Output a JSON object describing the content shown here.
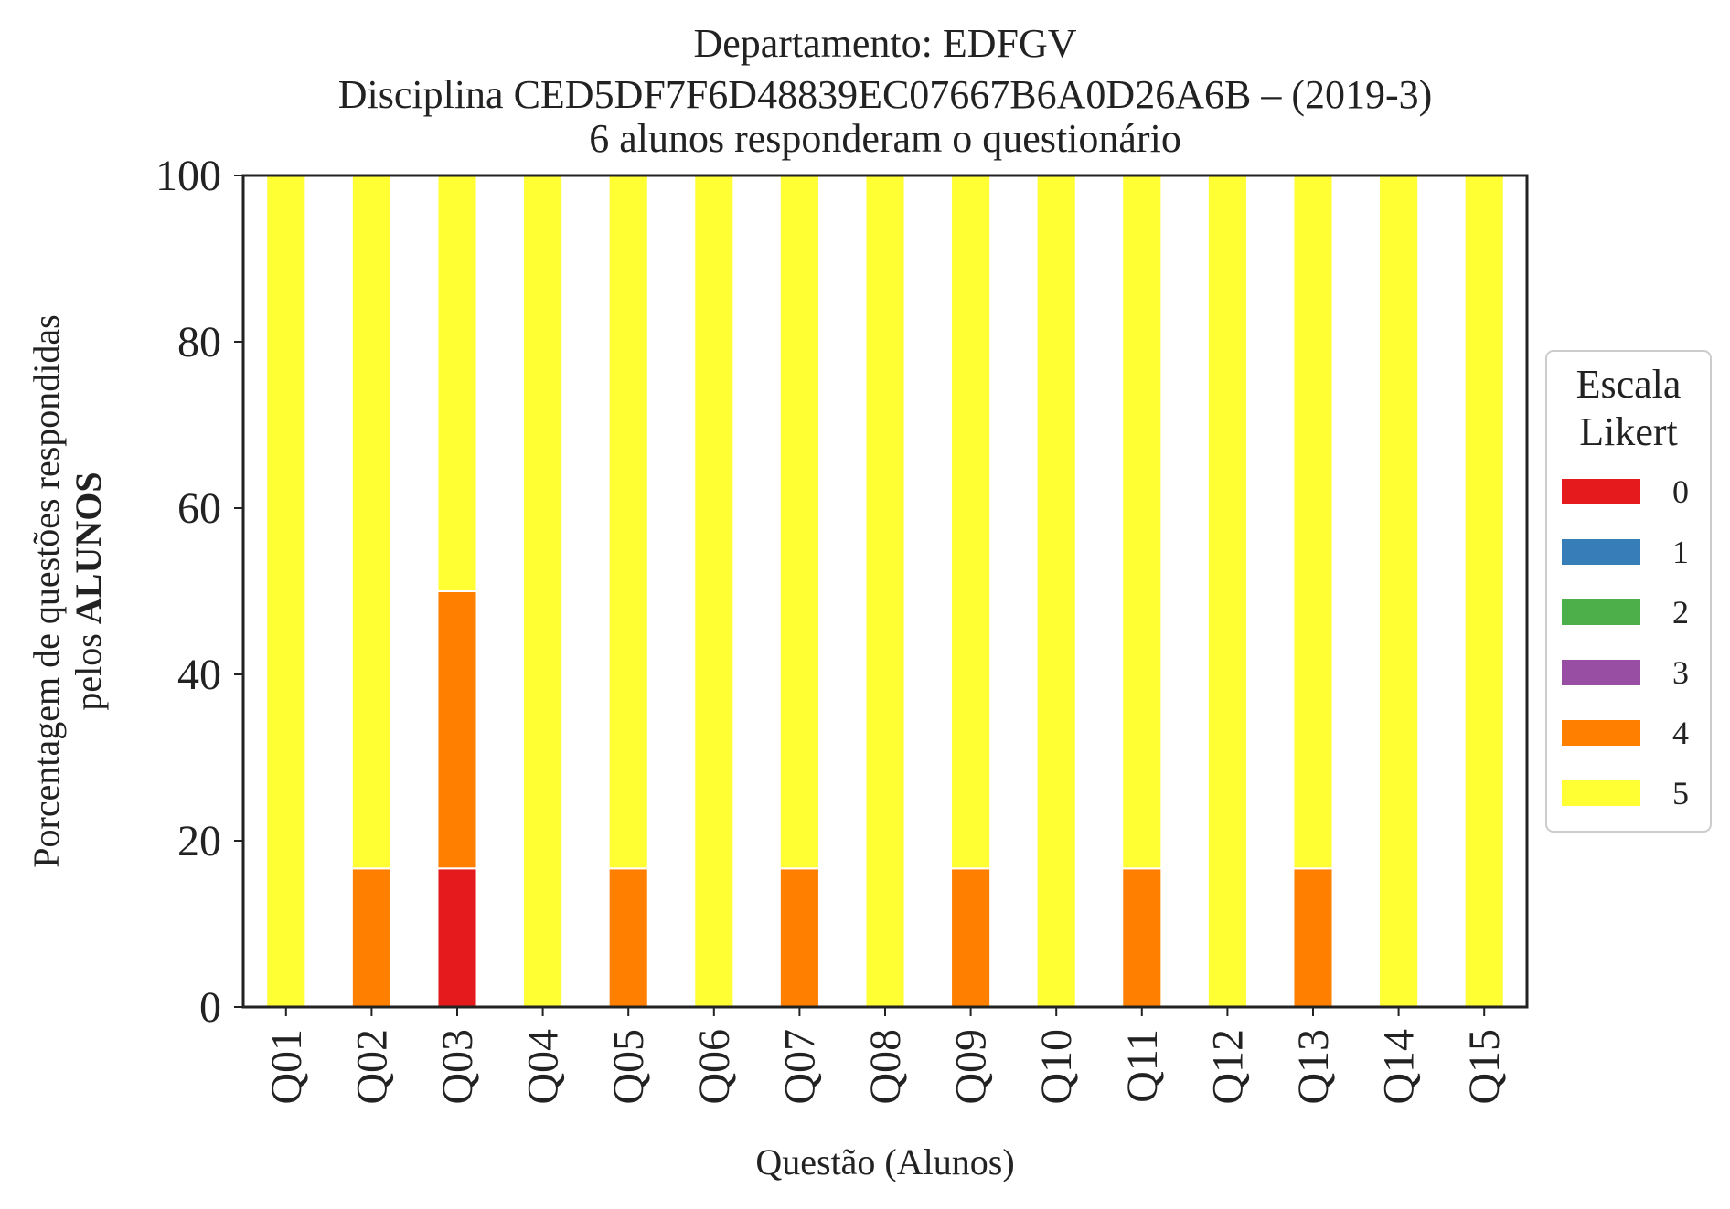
{
  "chart_data": {
    "type": "bar",
    "stacked": true,
    "title_lines": [
      "Departamento: EDFGV",
      "Disciplina CED5DF7F6D48839EC07667B6A0D26A6B – (2019-3)",
      "6 alunos responderam o questionário"
    ],
    "xlabel": "Questão (Alunos)",
    "ylabel_line1": "Porcentagem de questões respondidas",
    "ylabel_line2_prefix": "pelos ",
    "ylabel_line2_bold": "ALUNOS",
    "ylim": [
      0,
      100
    ],
    "yticks": [
      "0",
      "20",
      "40",
      "60",
      "80",
      "100"
    ],
    "grid": false,
    "legend_placement": "right",
    "legend_title_lines": [
      "Escala",
      "Likert"
    ],
    "categories": [
      "Q01",
      "Q02",
      "Q03",
      "Q04",
      "Q05",
      "Q06",
      "Q07",
      "Q08",
      "Q09",
      "Q10",
      "Q11",
      "Q12",
      "Q13",
      "Q14",
      "Q15"
    ],
    "series": [
      {
        "name": "0",
        "color": "#e41a1c",
        "values": [
          0,
          0,
          16.67,
          0,
          0,
          0,
          0,
          0,
          0,
          0,
          0,
          0,
          0,
          0,
          0
        ]
      },
      {
        "name": "1",
        "color": "#377eb8",
        "values": [
          0,
          0,
          0,
          0,
          0,
          0,
          0,
          0,
          0,
          0,
          0,
          0,
          0,
          0,
          0
        ]
      },
      {
        "name": "2",
        "color": "#4daf4a",
        "values": [
          0,
          0,
          0,
          0,
          0,
          0,
          0,
          0,
          0,
          0,
          0,
          0,
          0,
          0,
          0
        ]
      },
      {
        "name": "3",
        "color": "#984ea3",
        "values": [
          0,
          0,
          0,
          0,
          0,
          0,
          0,
          0,
          0,
          0,
          0,
          0,
          0,
          0,
          0
        ]
      },
      {
        "name": "4",
        "color": "#ff7f00",
        "values": [
          0,
          16.67,
          33.33,
          0,
          16.67,
          0,
          16.67,
          0,
          16.67,
          0,
          16.67,
          0,
          16.67,
          0,
          0
        ]
      },
      {
        "name": "5",
        "color": "#ffff33",
        "values": [
          100,
          83.33,
          50,
          100,
          83.33,
          100,
          83.33,
          100,
          83.33,
          100,
          83.33,
          100,
          83.33,
          100,
          100
        ]
      }
    ]
  }
}
